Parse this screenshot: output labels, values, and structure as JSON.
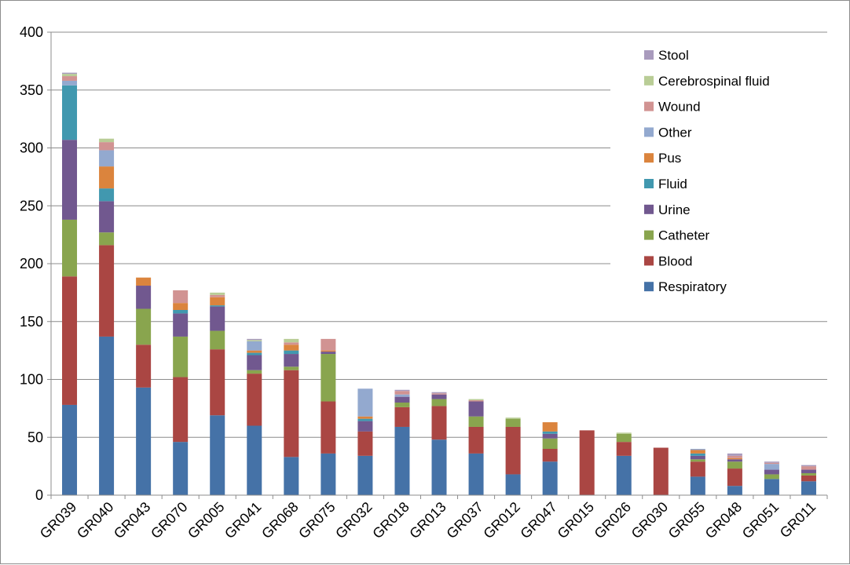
{
  "chart_data": {
    "type": "bar",
    "stacked": true,
    "title": "",
    "xlabel": "",
    "ylabel": "",
    "ylim": [
      0,
      400
    ],
    "y_ticks": [
      0,
      50,
      100,
      150,
      200,
      250,
      300,
      350,
      400
    ],
    "grid": "horizontal",
    "legend_position": "top-right",
    "categories": [
      "GR039",
      "GR040",
      "GR043",
      "GR070",
      "GR005",
      "GR041",
      "GR068",
      "GR075",
      "GR032",
      "GR018",
      "GR013",
      "GR037",
      "GR012",
      "GR047",
      "GR015",
      "GR026",
      "GR030",
      "GR055",
      "GR048",
      "GR051",
      "GR011"
    ],
    "series": [
      {
        "name": "Respiratory",
        "color": "#4572A7",
        "values": [
          78,
          137,
          93,
          46,
          69,
          60,
          33,
          36,
          34,
          59,
          48,
          36,
          18,
          29,
          0,
          34,
          0,
          16,
          8,
          14,
          12
        ]
      },
      {
        "name": "Blood",
        "color": "#AA4643",
        "values": [
          111,
          79,
          37,
          56,
          57,
          45,
          75,
          45,
          21,
          17,
          29,
          23,
          41,
          11,
          56,
          12,
          41,
          13,
          15,
          0,
          5
        ]
      },
      {
        "name": "Catheter",
        "color": "#89A54E",
        "values": [
          49,
          11,
          31,
          35,
          16,
          3,
          3,
          41,
          0,
          4,
          6,
          9,
          7,
          9,
          0,
          7,
          0,
          2,
          6,
          4,
          2
        ]
      },
      {
        "name": "Urine",
        "color": "#71588F",
        "values": [
          69,
          27,
          20,
          20,
          21,
          13,
          11,
          2,
          9,
          5,
          4,
          13,
          0,
          4,
          0,
          0,
          0,
          3,
          2,
          4,
          3
        ]
      },
      {
        "name": "Fluid",
        "color": "#4198AF",
        "values": [
          47,
          11,
          0,
          3,
          1,
          2,
          3,
          0,
          2,
          0,
          0,
          0,
          0,
          2,
          0,
          0,
          0,
          2,
          0,
          0,
          0
        ]
      },
      {
        "name": "Pus",
        "color": "#DB843D",
        "values": [
          0,
          19,
          7,
          6,
          7,
          2,
          5,
          1,
          2,
          0,
          0,
          0,
          0,
          8,
          0,
          0,
          0,
          3,
          1,
          0,
          0
        ]
      },
      {
        "name": "Other",
        "color": "#93A9CF",
        "values": [
          4,
          14,
          0,
          0,
          0,
          8,
          0,
          0,
          24,
          2,
          0,
          0,
          0,
          0,
          0,
          0,
          0,
          1,
          0,
          5,
          0
        ]
      },
      {
        "name": "Wound",
        "color": "#D19392",
        "values": [
          4,
          7,
          0,
          11,
          2,
          0,
          2,
          10,
          0,
          3,
          1,
          1,
          0,
          0,
          0,
          0,
          0,
          0,
          2,
          1,
          3
        ]
      },
      {
        "name": "Cerebrospinal fluid",
        "color": "#B9CD96",
        "values": [
          2,
          3,
          0,
          0,
          2,
          1,
          3,
          0,
          0,
          0,
          0,
          1,
          1,
          0,
          0,
          1,
          0,
          0,
          0,
          0,
          0
        ]
      },
      {
        "name": "Stool",
        "color": "#A99BBD",
        "values": [
          1,
          0,
          0,
          0,
          0,
          1,
          0,
          0,
          0,
          1,
          1,
          0,
          0,
          0,
          0,
          0,
          0,
          0,
          2,
          1,
          1
        ]
      }
    ]
  }
}
